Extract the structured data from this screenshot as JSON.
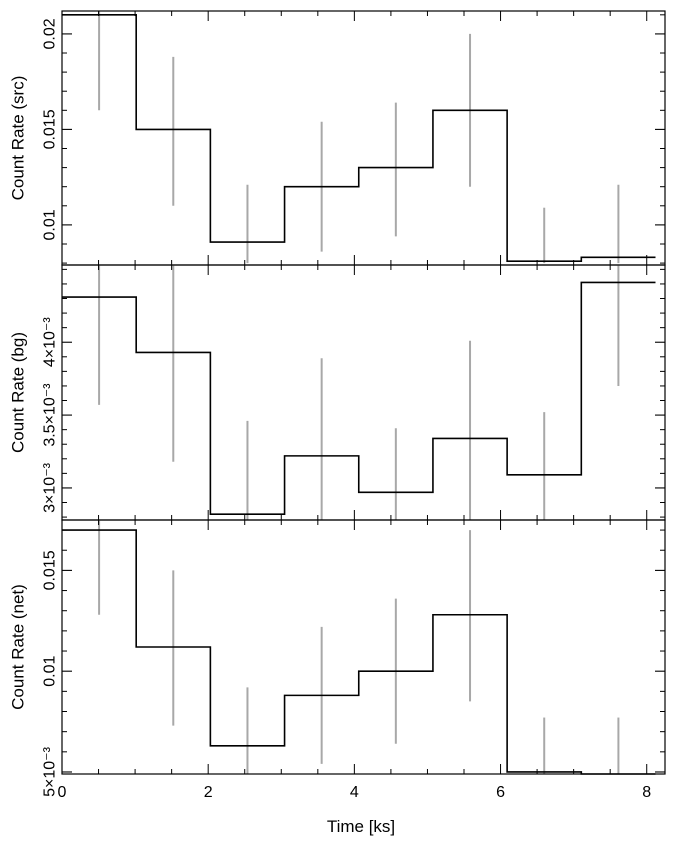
{
  "chart_data": [
    {
      "type": "line",
      "ylabel": "Count Rate (src)",
      "ylim": [
        0.0079,
        0.0212
      ],
      "xlim": [
        0,
        8.25
      ],
      "yticks_major": [
        0.01,
        0.015,
        0.02
      ],
      "ytick_labels": [
        "0.01",
        "0.015",
        "0.02"
      ],
      "yminor_step": 0.001,
      "x_edges": [
        0,
        1.015,
        2.03,
        3.045,
        4.06,
        5.075,
        6.09,
        7.105,
        8.12
      ],
      "series": [
        {
          "values": [
            0.021,
            0.015,
            0.0091,
            0.012,
            0.013,
            0.016,
            0.0081,
            0.0083
          ],
          "err_lo": [
            0.016,
            0.011,
            0.008,
            0.0086,
            0.0094,
            0.012,
            0.008,
            0.008
          ],
          "err_hi": [
            0.0212,
            0.0188,
            0.0121,
            0.0154,
            0.0164,
            0.02,
            0.0109,
            0.0121
          ]
        }
      ]
    },
    {
      "type": "line",
      "ylabel": "Count Rate (bg)",
      "ylim": [
        0.00278,
        0.00453
      ],
      "xlim": [
        0,
        8.25
      ],
      "yticks_major": [
        0.003,
        0.0035,
        0.004
      ],
      "ytick_labels": [
        "3×10⁻³",
        "3.5×10⁻³",
        "4×10⁻³"
      ],
      "yminor_step": 0.0001,
      "x_edges": [
        0,
        1.015,
        2.03,
        3.045,
        4.06,
        5.075,
        6.09,
        7.105,
        8.12
      ],
      "series": [
        {
          "values": [
            0.00431,
            0.00393,
            0.00282,
            0.00322,
            0.00297,
            0.00334,
            0.00309,
            0.00441
          ],
          "err_lo": [
            0.00357,
            0.00318,
            0.00278,
            0.00278,
            0.00278,
            0.00278,
            0.00278,
            0.0037
          ],
          "err_hi": [
            0.00453,
            0.00453,
            0.00346,
            0.00389,
            0.00341,
            0.00401,
            0.00352,
            0.00453
          ]
        }
      ]
    },
    {
      "type": "line",
      "ylabel": "Count Rate (net)",
      "xlabel": "Time [ks]",
      "ylim": [
        0.0049,
        0.0175
      ],
      "xlim": [
        0,
        8.25
      ],
      "xticks_major": [
        0,
        2,
        4,
        6,
        8
      ],
      "xtick_labels": [
        "0",
        "2",
        "4",
        "6",
        "8"
      ],
      "xminor_step": 0.5,
      "yticks_major": [
        0.005,
        0.01,
        0.015
      ],
      "ytick_labels": [
        "5×10⁻³",
        "0.01",
        "0.015"
      ],
      "yminor_step": 0.001,
      "x_edges": [
        0,
        1.015,
        2.03,
        3.045,
        4.06,
        5.075,
        6.09,
        7.105,
        8.12
      ],
      "series": [
        {
          "values": [
            0.017,
            0.0112,
            0.0063,
            0.0088,
            0.01,
            0.0128,
            0.005,
            0.0049
          ],
          "err_lo": [
            0.0128,
            0.0073,
            0.0049,
            0.0054,
            0.0064,
            0.0085,
            0.0049,
            0.0049
          ],
          "err_hi": [
            0.0175,
            0.015,
            0.0092,
            0.0122,
            0.0136,
            0.017,
            0.0077,
            0.0077
          ]
        }
      ]
    }
  ]
}
